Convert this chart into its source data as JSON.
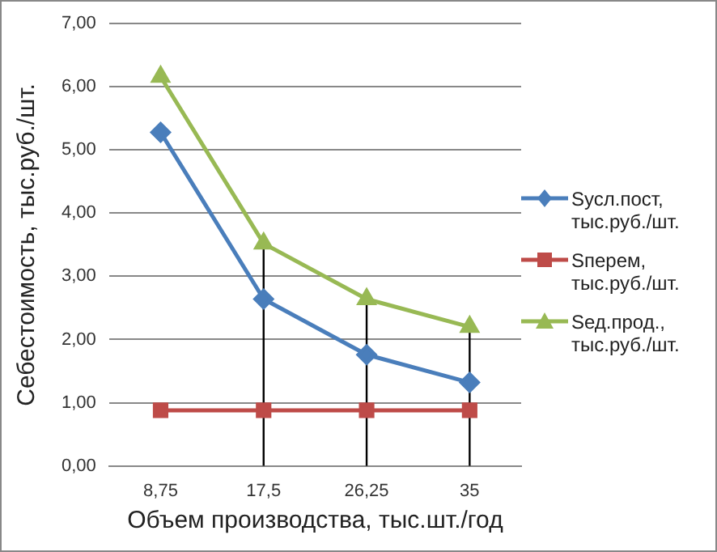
{
  "chart_data": {
    "type": "line",
    "xlabel": "Объем производства, тыс.шт./год",
    "ylabel": "Себестоимость, тыс.руб./шт.",
    "categories": [
      "8,75",
      "17,5",
      "26,25",
      "35"
    ],
    "series": [
      {
        "name": "Sусл.пост, тыс.руб./шт.",
        "color": "#4a7ebb",
        "marker": "diamond",
        "values": [
          5.28,
          2.64,
          1.76,
          1.32
        ]
      },
      {
        "name": "Sперем, тыс.руб./шт.",
        "color": "#be4b48",
        "marker": "square",
        "values": [
          0.88,
          0.88,
          0.88,
          0.88
        ]
      },
      {
        "name": "Sед.прод., тыс.руб./шт.",
        "color": "#98b954",
        "marker": "triangle",
        "values": [
          6.16,
          3.52,
          2.64,
          2.2
        ],
        "errors": [
          null,
          [
            0,
            3.52
          ],
          [
            0,
            2.64
          ],
          [
            0,
            2.2
          ]
        ]
      }
    ],
    "ylim": [
      0,
      7
    ],
    "yticks": [
      {
        "value": 0,
        "label": "0,00"
      },
      {
        "value": 1,
        "label": "1,00"
      },
      {
        "value": 2,
        "label": "2,00"
      },
      {
        "value": 3,
        "label": "3,00"
      },
      {
        "value": 4,
        "label": "4,00"
      },
      {
        "value": 5,
        "label": "5,00"
      },
      {
        "value": 6,
        "label": "6,00"
      },
      {
        "value": 7,
        "label": "7,00"
      }
    ],
    "grid": "y",
    "legend": "right"
  }
}
